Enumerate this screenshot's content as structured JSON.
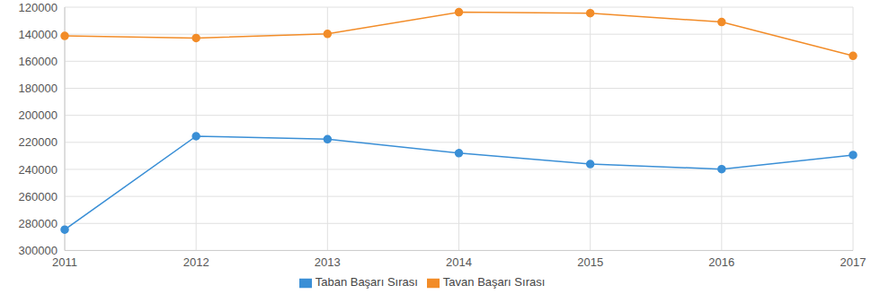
{
  "chart_data": {
    "type": "line",
    "categories": [
      "2011",
      "2012",
      "2013",
      "2014",
      "2015",
      "2016",
      "2017"
    ],
    "series": [
      {
        "name": "Tavan Başarı Sırası",
        "color": "#f28c28",
        "marker": "circle",
        "values": [
          141300,
          142800,
          139800,
          123700,
          124400,
          131000,
          156000
        ]
      },
      {
        "name": "Taban Başarı Sırası",
        "color": "#3a8fd6",
        "marker": "circle",
        "values": [
          284600,
          215500,
          217700,
          228000,
          236100,
          239800,
          229400
        ]
      }
    ],
    "ylim": [
      300000,
      120000
    ],
    "yticks": [
      120000,
      140000,
      160000,
      180000,
      200000,
      220000,
      240000,
      260000,
      280000,
      300000
    ],
    "grid": true,
    "legend": "bottom"
  }
}
